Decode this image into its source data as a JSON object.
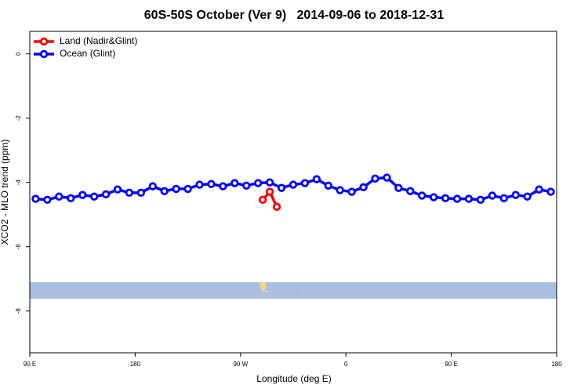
{
  "chart_data": {
    "type": "line",
    "title": "60S-50S October (Ver 9)   2014-09-06 to 2018-12-31",
    "x_label": "Longitude (deg E)",
    "y_label": "XCO2 - MLO trend (ppm)",
    "xlim": [
      90,
      540
    ],
    "xticks": [
      {
        "value": 90,
        "label": "90 E"
      },
      180,
      {
        "value": 270,
        "label": "90 W"
      },
      {
        "value": 360,
        "label": "0"
      },
      {
        "value": 450,
        "label": "90 E"
      },
      {
        "value": 540,
        "label": "180"
      }
    ],
    "ylim": [
      -9.3,
      0.7
    ],
    "yticks": [
      0,
      -2,
      -4,
      -6,
      -8
    ],
    "legend": "top-left",
    "series": [
      {
        "name": "Land (Nadir&Glint)",
        "color": "#ff0000",
        "x": [
          289,
          295,
          301
        ],
        "values": [
          -4.54,
          -4.29,
          -4.76
        ]
      },
      {
        "name": "Ocean (Glint)",
        "color": "#0000ff",
        "x": [
          95,
          105,
          115,
          125,
          135,
          145,
          155,
          165,
          175,
          185,
          195,
          205,
          215,
          225,
          235,
          245,
          255,
          265,
          275,
          285,
          295,
          305,
          315,
          325,
          335,
          345,
          355,
          365,
          375,
          385,
          395,
          405,
          415,
          425,
          435,
          445,
          455,
          465,
          475,
          485,
          495,
          505,
          515,
          525,
          535
        ],
        "values": [
          -4.51,
          -4.54,
          -4.44,
          -4.49,
          -4.39,
          -4.44,
          -4.37,
          -4.22,
          -4.32,
          -4.32,
          -4.12,
          -4.27,
          -4.2,
          -4.2,
          -4.07,
          -4.05,
          -4.12,
          -4.02,
          -4.1,
          -4.02,
          -4.0,
          -4.17,
          -4.07,
          -4.02,
          -3.9,
          -4.1,
          -4.24,
          -4.29,
          -4.15,
          -3.88,
          -3.85,
          -4.17,
          -4.27,
          -4.41,
          -4.46,
          -4.49,
          -4.51,
          -4.51,
          -4.54,
          -4.41,
          -4.49,
          -4.39,
          -4.44,
          -4.22,
          -4.29
        ]
      }
    ]
  }
}
